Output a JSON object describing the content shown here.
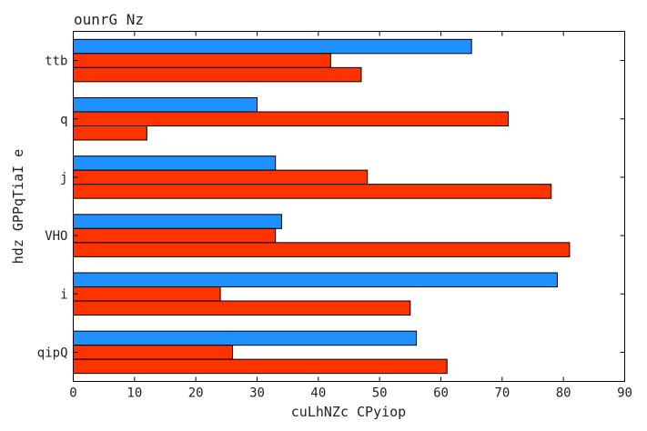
{
  "chart_data": {
    "type": "bar",
    "orientation": "horizontal",
    "title": "ounrG Nz",
    "xlabel": "cuLhNZc CPyiop",
    "ylabel": "hdz GPPqTiaI e",
    "xlim": [
      0,
      90
    ],
    "xticks": [
      0,
      10,
      20,
      30,
      40,
      50,
      60,
      70,
      80,
      90
    ],
    "grid": false,
    "legend": "none",
    "categories": [
      "ttb",
      "q",
      "j",
      "VHO",
      "i",
      "qipQ"
    ],
    "series": [
      {
        "color": "#1e90ff",
        "values": [
          65,
          30,
          33,
          34,
          79,
          56
        ]
      },
      {
        "color": "#ff3300",
        "values": [
          42,
          71,
          48,
          33,
          24,
          26
        ]
      },
      {
        "color": "#ff3300",
        "values": [
          47,
          12,
          78,
          81,
          55,
          61
        ]
      }
    ]
  }
}
